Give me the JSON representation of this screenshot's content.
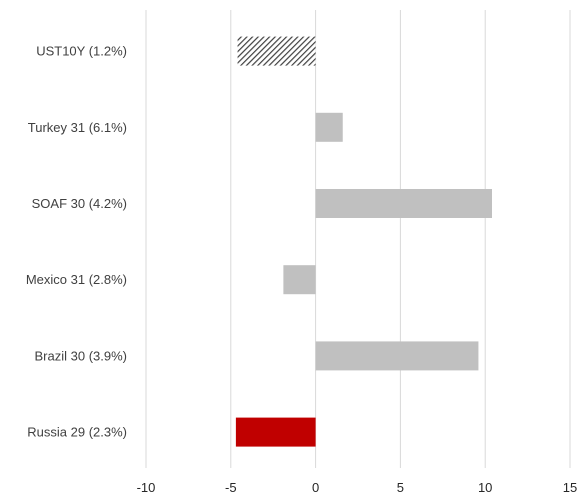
{
  "chart_data": {
    "type": "bar",
    "orientation": "horizontal",
    "categories": [
      "UST10Y (1.2%)",
      "Turkey 31 (6.1%)",
      "SOAF 30 (4.2%)",
      "Mexico 31 (2.8%)",
      "Brazil 30 (3.9%)",
      "Russia 29 (2.3%)"
    ],
    "values": [
      -4.6,
      1.6,
      10.4,
      -1.9,
      9.6,
      -4.7
    ],
    "bar_styles": [
      "hatched",
      "solid",
      "solid",
      "solid",
      "solid",
      "solid"
    ],
    "bar_colors": [
      "#404040",
      "#c0c0c0",
      "#c0c0c0",
      "#c0c0c0",
      "#c0c0c0",
      "#c00000"
    ],
    "xlim": [
      -10,
      15
    ],
    "xticks": [
      "-10",
      "-5",
      "0",
      "5",
      "10",
      "15"
    ],
    "grid": true,
    "title": "",
    "xlabel": "",
    "ylabel": ""
  }
}
